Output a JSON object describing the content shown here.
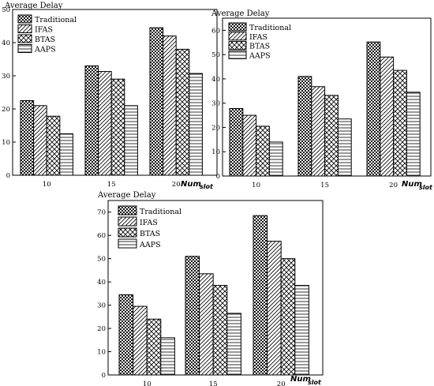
{
  "colors": {
    "axis": "#000000",
    "bar_fill": "#ffffff",
    "background": "#ffffff"
  },
  "chart_data": [
    {
      "type": "bar",
      "ylabel": "Average Delay",
      "xlabel_main": "Num",
      "xlabel_sub": "slot",
      "ylim": [
        0,
        50
      ],
      "yticks": [
        0,
        10,
        20,
        30,
        40,
        50
      ],
      "categories": [
        "10",
        "15",
        "20"
      ],
      "legend": "top-left",
      "series": [
        {
          "name": "Traditional",
          "pattern": "dots",
          "values": [
            22.5,
            33,
            44.5
          ]
        },
        {
          "name": "IFAS",
          "pattern": "diag",
          "values": [
            21,
            31.3,
            42
          ]
        },
        {
          "name": "BTAS",
          "pattern": "cross",
          "values": [
            17.8,
            29,
            38
          ]
        },
        {
          "name": "AAPS",
          "pattern": "horiz",
          "values": [
            12.5,
            21,
            30.7
          ]
        }
      ]
    },
    {
      "type": "bar",
      "ylabel": "Average Delay",
      "xlabel_main": "Num",
      "xlabel_sub": "slot",
      "ylim": [
        0,
        65
      ],
      "yticks": [
        0,
        10,
        20,
        30,
        40,
        50,
        60
      ],
      "categories": [
        "10",
        "15",
        "20"
      ],
      "legend": "top-left",
      "series": [
        {
          "name": "Traditional",
          "pattern": "dots",
          "values": [
            27.8,
            41,
            55.2
          ]
        },
        {
          "name": "IFAS",
          "pattern": "diag",
          "values": [
            25,
            36.8,
            49
          ]
        },
        {
          "name": "BTAS",
          "pattern": "cross",
          "values": [
            20.5,
            33.2,
            43.5
          ]
        },
        {
          "name": "AAPS",
          "pattern": "horiz",
          "values": [
            14,
            23.5,
            34.5
          ]
        }
      ]
    },
    {
      "type": "bar",
      "ylabel": "Average Delay",
      "xlabel_main": "Num",
      "xlabel_sub": "slot",
      "ylim": [
        0,
        75
      ],
      "yticks": [
        0,
        10,
        20,
        30,
        40,
        50,
        60,
        70
      ],
      "categories": [
        "10",
        "15",
        "20"
      ],
      "legend": "top-left",
      "series": [
        {
          "name": "Traditional",
          "pattern": "dots",
          "values": [
            34.5,
            51,
            68.5
          ]
        },
        {
          "name": "IFAS",
          "pattern": "diag",
          "values": [
            29.5,
            43.5,
            57.5
          ]
        },
        {
          "name": "BTAS",
          "pattern": "cross",
          "values": [
            24,
            38.5,
            50
          ]
        },
        {
          "name": "AAPS",
          "pattern": "horiz",
          "values": [
            16,
            26.5,
            38.5
          ]
        }
      ]
    }
  ]
}
